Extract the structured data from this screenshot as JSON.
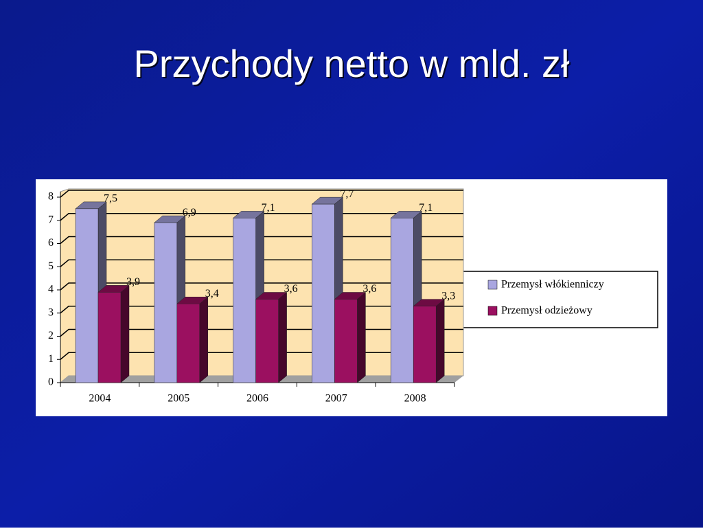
{
  "chart_data": {
    "type": "bar3d",
    "title": "Przychody netto w mld. zł",
    "categories": [
      "2004",
      "2005",
      "2006",
      "2007",
      "2008"
    ],
    "series": [
      {
        "name": "Przemysł włókienniczy",
        "color": "#a9a6e0",
        "values": [
          7.5,
          6.9,
          7.1,
          7.7,
          7.1
        ],
        "value_labels": [
          "7,5",
          "6,9",
          "7,1",
          "7,7",
          "7,1"
        ]
      },
      {
        "name": "Przemysł odzieżowy",
        "color": "#9b1060",
        "values": [
          3.9,
          3.4,
          3.6,
          3.6,
          3.3
        ],
        "value_labels": [
          "3,9",
          "3,4",
          "3,6",
          "3,6",
          "3,3"
        ]
      }
    ],
    "ylim": [
      0,
      8
    ],
    "yticks": [
      0,
      1,
      2,
      3,
      4,
      5,
      6,
      7,
      8
    ],
    "grid": true,
    "legend": "right"
  }
}
